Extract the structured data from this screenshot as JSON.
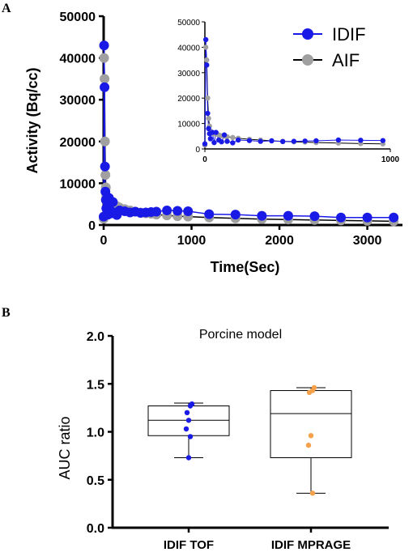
{
  "panels": {
    "a_letter": "A",
    "b_letter": "B"
  },
  "chart_data": [
    {
      "type": "scatter",
      "xlabel": "Time(Sec)",
      "ylabel": "Activity (Bq/cc)",
      "xlim": [
        0,
        3400
      ],
      "ylim": [
        0,
        50000
      ],
      "x_ticks": [
        "0",
        "1000",
        "2000",
        "3000"
      ],
      "y_ticks": [
        "0",
        "10000",
        "20000",
        "30000",
        "40000",
        "50000"
      ],
      "legend_position": "top-right",
      "colors": {
        "IDIF": "#1a1ae6",
        "AIF": "#a0a0a0"
      },
      "series": [
        {
          "name": "IDIF",
          "x": [
            0,
            5,
            10,
            15,
            20,
            25,
            30,
            40,
            50,
            60,
            75,
            90,
            105,
            120,
            150,
            180,
            240,
            300,
            360,
            420,
            480,
            540,
            600,
            720,
            840,
            960,
            1200,
            1500,
            1800,
            2100,
            2400,
            2700,
            3000,
            3300
          ],
          "y": [
            2000,
            43000,
            33000,
            14000,
            8000,
            6000,
            4000,
            6500,
            2500,
            6500,
            3500,
            2800,
            5500,
            3000,
            2400,
            3500,
            3300,
            3000,
            3200,
            2900,
            3000,
            3100,
            3200,
            3500,
            3400,
            3300,
            2600,
            2500,
            2200,
            2200,
            2100,
            1800,
            1800,
            1800
          ]
        },
        {
          "name": "AIF",
          "x": [
            0,
            5,
            10,
            15,
            20,
            25,
            30,
            40,
            50,
            60,
            75,
            90,
            105,
            120,
            150,
            180,
            240,
            300,
            360,
            420,
            480,
            540,
            600,
            720,
            840,
            960,
            1200,
            1500,
            1800,
            2100,
            2400,
            2700,
            3000,
            3300
          ],
          "y": [
            1500,
            40000,
            35000,
            20000,
            12000,
            9000,
            7000,
            6200,
            6000,
            5800,
            5500,
            5200,
            5000,
            4800,
            4500,
            4200,
            3800,
            3500,
            3200,
            3000,
            2800,
            2700,
            2500,
            2300,
            2100,
            2000,
            1800,
            1600,
            1400,
            1300,
            1200,
            1100,
            1000,
            900
          ]
        }
      ],
      "inset": {
        "xlim": [
          0,
          1000
        ],
        "ylim": [
          0,
          50000
        ],
        "x_ticks": [
          "0",
          "1000"
        ],
        "y_ticks": [
          "0",
          "10000",
          "20000",
          "30000",
          "40000",
          "50000"
        ]
      }
    },
    {
      "type": "box",
      "title": "Porcine model",
      "ylabel": "AUC ratio",
      "ylim": [
        0,
        2.0
      ],
      "y_ticks": [
        "0.0",
        "0.5",
        "1.0",
        "1.5",
        "2.0"
      ],
      "categories": [
        "IDIF TOF",
        "IDIF MPRAGE"
      ],
      "colors": {
        "IDIF TOF": "#1a1ae6",
        "IDIF MPRAGE": "#f5a04a"
      },
      "boxes": [
        {
          "category": "IDIF TOF",
          "min": 0.73,
          "q1": 0.96,
          "median": 1.12,
          "q3": 1.27,
          "max": 1.3,
          "points": [
            1.29,
            1.27,
            1.2,
            1.12,
            1.03,
            0.95,
            0.73
          ]
        },
        {
          "category": "IDIF MPRAGE",
          "min": 0.36,
          "q1": 0.73,
          "median": 1.19,
          "q3": 1.43,
          "max": 1.46,
          "points": [
            1.46,
            1.43,
            1.41,
            0.96,
            0.86,
            0.36
          ]
        }
      ]
    }
  ]
}
